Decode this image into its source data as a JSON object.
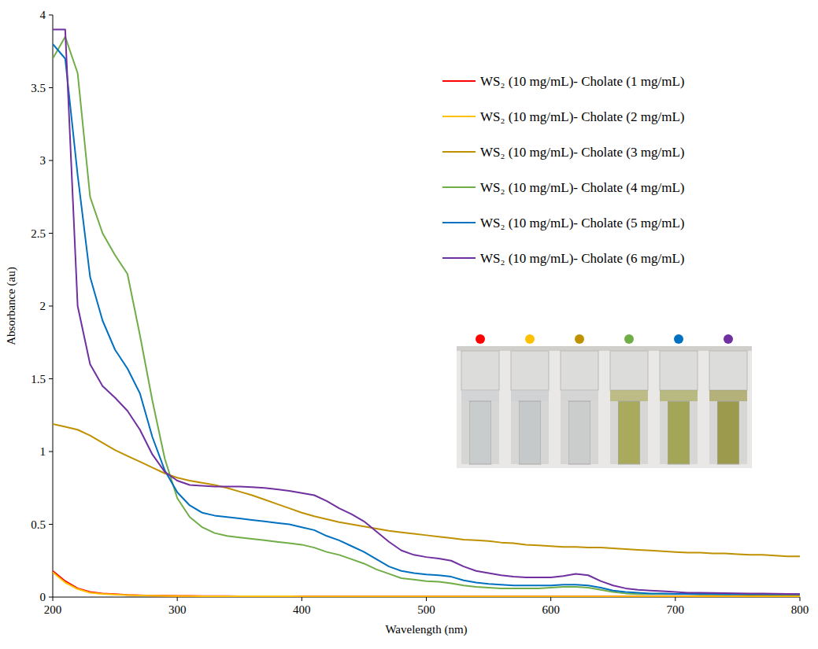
{
  "chart_data": {
    "type": "line",
    "x_label": "Wavelength (nm)",
    "y_label": "Absorbance (au)",
    "x": [
      200,
      210,
      220,
      230,
      240,
      250,
      260,
      270,
      280,
      290,
      300,
      310,
      320,
      330,
      340,
      350,
      360,
      370,
      380,
      390,
      400,
      410,
      420,
      430,
      440,
      450,
      460,
      470,
      480,
      490,
      500,
      510,
      520,
      530,
      540,
      550,
      560,
      570,
      580,
      590,
      600,
      610,
      620,
      630,
      640,
      650,
      660,
      670,
      680,
      690,
      700,
      710,
      720,
      730,
      740,
      750,
      760,
      770,
      780,
      790,
      800
    ],
    "xlim": [
      200,
      800
    ],
    "xticks": [
      200,
      300,
      400,
      500,
      600,
      700,
      800
    ],
    "ylim": [
      0,
      4
    ],
    "yticks": [
      0,
      0.5,
      1,
      1.5,
      2,
      2.5,
      3,
      3.5,
      4
    ],
    "grid": false,
    "legend": "top-right",
    "series": [
      {
        "name": "WS₂ (10 mg/mL)- Cholate (1 mg/mL)",
        "color": "#ff0000",
        "values": [
          0.18,
          0.11,
          0.06,
          0.035,
          0.025,
          0.02,
          0.015,
          0.012,
          0.01,
          0.01,
          0.008,
          0.008,
          0.007,
          0.007,
          0.007,
          0.006,
          0.006,
          0.006,
          0.006,
          0.006,
          0.005,
          0.005,
          0.005,
          0.005,
          0.005,
          0.005,
          0.005,
          0.005,
          0.005,
          0.005,
          0.005,
          0.005,
          0.005,
          0.005,
          0.005,
          0.005,
          0.005,
          0.005,
          0.005,
          0.005,
          0.005,
          0.005,
          0.005,
          0.005,
          0.005,
          0.005,
          0.005,
          0.005,
          0.005,
          0.005,
          0.005,
          0.005,
          0.005,
          0.005,
          0.005,
          0.005,
          0.005,
          0.005,
          0.005,
          0.005,
          0.005
        ]
      },
      {
        "name": "WS₂ (10 mg/mL)- Cholate (2 mg/mL)",
        "color": "#ffc000",
        "values": [
          0.17,
          0.1,
          0.055,
          0.03,
          0.022,
          0.018,
          0.014,
          0.011,
          0.009,
          0.008,
          0.007,
          0.007,
          0.006,
          0.006,
          0.006,
          0.005,
          0.005,
          0.005,
          0.005,
          0.005,
          0.004,
          0.004,
          0.004,
          0.004,
          0.004,
          0.004,
          0.004,
          0.004,
          0.004,
          0.004,
          0.004,
          0.004,
          0.004,
          0.004,
          0.004,
          0.004,
          0.004,
          0.004,
          0.004,
          0.004,
          0.004,
          0.004,
          0.004,
          0.004,
          0.004,
          0.004,
          0.004,
          0.004,
          0.004,
          0.004,
          0.004,
          0.004,
          0.004,
          0.004,
          0.004,
          0.004,
          0.004,
          0.004,
          0.004,
          0.004,
          0.004
        ]
      },
      {
        "name": "WS₂ (10 mg/mL)- Cholate (3 mg/mL)",
        "color": "#bf9000",
        "values": [
          1.19,
          1.17,
          1.15,
          1.11,
          1.06,
          1.01,
          0.97,
          0.93,
          0.89,
          0.85,
          0.82,
          0.8,
          0.785,
          0.77,
          0.75,
          0.725,
          0.7,
          0.67,
          0.64,
          0.61,
          0.58,
          0.555,
          0.535,
          0.515,
          0.5,
          0.485,
          0.47,
          0.455,
          0.445,
          0.435,
          0.425,
          0.415,
          0.405,
          0.395,
          0.39,
          0.385,
          0.375,
          0.37,
          0.36,
          0.355,
          0.35,
          0.345,
          0.345,
          0.34,
          0.34,
          0.335,
          0.33,
          0.325,
          0.32,
          0.315,
          0.31,
          0.305,
          0.305,
          0.3,
          0.3,
          0.295,
          0.29,
          0.29,
          0.285,
          0.28,
          0.28
        ]
      },
      {
        "name": "WS₂ (10 mg/mL)- Cholate (4 mg/mL)",
        "color": "#70ad47",
        "values": [
          3.7,
          3.85,
          3.6,
          2.75,
          2.5,
          2.35,
          2.22,
          1.8,
          1.35,
          0.95,
          0.68,
          0.55,
          0.48,
          0.44,
          0.42,
          0.41,
          0.4,
          0.39,
          0.38,
          0.37,
          0.36,
          0.34,
          0.31,
          0.29,
          0.26,
          0.23,
          0.19,
          0.16,
          0.13,
          0.12,
          0.11,
          0.105,
          0.095,
          0.08,
          0.07,
          0.065,
          0.06,
          0.06,
          0.06,
          0.06,
          0.065,
          0.07,
          0.07,
          0.065,
          0.05,
          0.035,
          0.025,
          0.02,
          0.02,
          0.02,
          0.02,
          0.02,
          0.018,
          0.018,
          0.017,
          0.017,
          0.016,
          0.016,
          0.015,
          0.015,
          0.015
        ]
      },
      {
        "name": "WS₂ (10 mg/mL)- Cholate (5 mg/mL)",
        "color": "#0070c0",
        "values": [
          3.8,
          3.7,
          2.9,
          2.2,
          1.9,
          1.7,
          1.57,
          1.4,
          1.1,
          0.87,
          0.72,
          0.63,
          0.58,
          0.56,
          0.55,
          0.54,
          0.53,
          0.52,
          0.51,
          0.5,
          0.48,
          0.46,
          0.42,
          0.39,
          0.35,
          0.31,
          0.26,
          0.21,
          0.18,
          0.165,
          0.155,
          0.15,
          0.14,
          0.115,
          0.1,
          0.09,
          0.085,
          0.08,
          0.08,
          0.08,
          0.08,
          0.085,
          0.085,
          0.08,
          0.065,
          0.045,
          0.035,
          0.03,
          0.025,
          0.025,
          0.022,
          0.022,
          0.021,
          0.021,
          0.02,
          0.02,
          0.02,
          0.02,
          0.02,
          0.02,
          0.02
        ]
      },
      {
        "name": "WS₂ (10 mg/mL)- Cholate (6 mg/mL)",
        "color": "#7030a0",
        "values": [
          3.9,
          3.9,
          2.0,
          1.6,
          1.45,
          1.37,
          1.28,
          1.15,
          0.98,
          0.86,
          0.8,
          0.77,
          0.765,
          0.76,
          0.76,
          0.76,
          0.755,
          0.75,
          0.74,
          0.73,
          0.715,
          0.7,
          0.66,
          0.61,
          0.57,
          0.52,
          0.45,
          0.38,
          0.32,
          0.29,
          0.275,
          0.265,
          0.25,
          0.21,
          0.18,
          0.165,
          0.15,
          0.14,
          0.135,
          0.135,
          0.135,
          0.145,
          0.16,
          0.15,
          0.11,
          0.08,
          0.06,
          0.05,
          0.045,
          0.04,
          0.035,
          0.03,
          0.03,
          0.028,
          0.027,
          0.026,
          0.025,
          0.024,
          0.023,
          0.022,
          0.02
        ]
      }
    ]
  }
}
